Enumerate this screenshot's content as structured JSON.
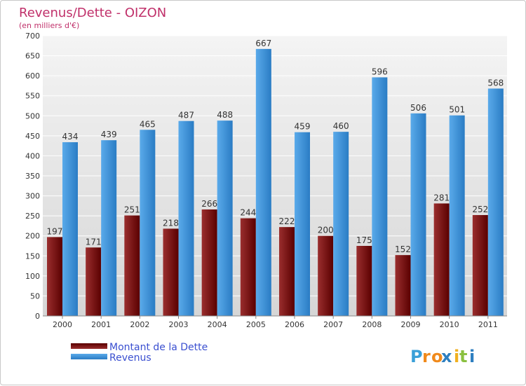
{
  "colors": {
    "title": "#c0306a",
    "legend_text": "#3a4fd0",
    "axis_text": "#333333",
    "grid": "#ffffff",
    "plot_bg_top": "#f4f4f4",
    "plot_bg_bottom": "#d6d6d6",
    "dette_dark": "#5a0000",
    "dette_light": "#9a2e2e",
    "revenus_dark": "#2a7cc4",
    "revenus_light": "#5aaaea"
  },
  "chart_data": {
    "type": "bar",
    "title": "Revenus/Dette - OIZON",
    "subtitle": "(en milliers d'€)",
    "xlabel": "",
    "ylabel": "",
    "ylim": [
      0,
      700
    ],
    "yticks": [
      0,
      50,
      100,
      150,
      200,
      250,
      300,
      350,
      400,
      450,
      500,
      550,
      600,
      650,
      700
    ],
    "categories": [
      "2000",
      "2001",
      "2002",
      "2003",
      "2004",
      "2005",
      "2006",
      "2007",
      "2008",
      "2009",
      "2010",
      "2011"
    ],
    "series": [
      {
        "name": "Montant de la Dette",
        "values": [
          197,
          171,
          251,
          218,
          266,
          244,
          222,
          200,
          175,
          152,
          281,
          252
        ]
      },
      {
        "name": "Revenus",
        "values": [
          434,
          439,
          465,
          487,
          488,
          667,
          459,
          460,
          596,
          506,
          501,
          568
        ]
      }
    ],
    "legend": [
      "Montant de la Dette",
      "Revenus"
    ],
    "legend_position": "bottom-left"
  },
  "logo": {
    "letters": [
      "P",
      "r",
      "o",
      "x",
      "i",
      "t",
      "i"
    ],
    "colors": [
      "#3aa0d8",
      "#f08a1c",
      "#f08a1c",
      "#2e7fc0",
      "#f0b020",
      "#8ac040",
      "#2e7fc0"
    ]
  }
}
